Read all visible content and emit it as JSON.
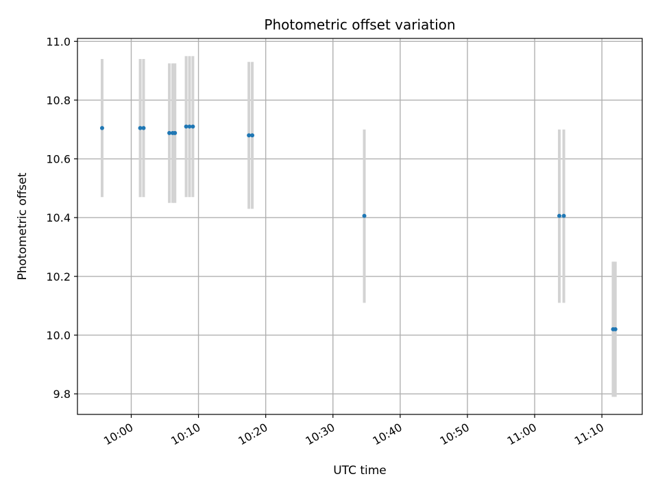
{
  "chart_data": {
    "type": "scatter",
    "title": "Photometric offset variation",
    "xlabel": "UTC time",
    "ylabel": "Photometric offset",
    "x_kind": "time",
    "xlim": [
      "09:52",
      "11:16"
    ],
    "ylim": [
      9.73,
      11.01
    ],
    "grid": true,
    "y_ticks": [
      "9.8",
      "10.0",
      "10.2",
      "10.4",
      "10.6",
      "10.8",
      "11.0"
    ],
    "x_ticks": [
      "10:00",
      "10:10",
      "10:20",
      "10:30",
      "10:40",
      "10:50",
      "11:00",
      "11:10"
    ],
    "colors": {
      "point": "#1f77b4",
      "errorbar": "#d3d3d3",
      "grid": "#b0b0b0"
    },
    "series": [
      {
        "points": [
          {
            "x": "09:55:40",
            "y": 10.705,
            "yerr_low": 10.47,
            "yerr_high": 10.94
          },
          {
            "x": "10:01:20",
            "y": 10.705,
            "yerr_low": 10.47,
            "yerr_high": 10.94
          },
          {
            "x": "10:01:50",
            "y": 10.705,
            "yerr_low": 10.47,
            "yerr_high": 10.94
          },
          {
            "x": "10:05:40",
            "y": 10.688,
            "yerr_low": 10.45,
            "yerr_high": 10.925
          },
          {
            "x": "10:06:10",
            "y": 10.688,
            "yerr_low": 10.45,
            "yerr_high": 10.925
          },
          {
            "x": "10:06:30",
            "y": 10.688,
            "yerr_low": 10.45,
            "yerr_high": 10.925
          },
          {
            "x": "10:08:10",
            "y": 10.71,
            "yerr_low": 10.47,
            "yerr_high": 10.95
          },
          {
            "x": "10:08:40",
            "y": 10.71,
            "yerr_low": 10.47,
            "yerr_high": 10.95
          },
          {
            "x": "10:09:10",
            "y": 10.71,
            "yerr_low": 10.47,
            "yerr_high": 10.95
          },
          {
            "x": "10:17:30",
            "y": 10.68,
            "yerr_low": 10.43,
            "yerr_high": 10.93
          },
          {
            "x": "10:18:00",
            "y": 10.68,
            "yerr_low": 10.43,
            "yerr_high": 10.93
          },
          {
            "x": "10:34:40",
            "y": 10.406,
            "yerr_low": 10.11,
            "yerr_high": 10.7
          },
          {
            "x": "11:03:40",
            "y": 10.406,
            "yerr_low": 10.11,
            "yerr_high": 10.7
          },
          {
            "x": "11:04:20",
            "y": 10.406,
            "yerr_low": 10.11,
            "yerr_high": 10.7
          },
          {
            "x": "11:11:40",
            "y": 10.02,
            "yerr_low": 9.79,
            "yerr_high": 10.25
          },
          {
            "x": "11:12:00",
            "y": 10.02,
            "yerr_low": 9.79,
            "yerr_high": 10.25
          }
        ]
      }
    ]
  }
}
